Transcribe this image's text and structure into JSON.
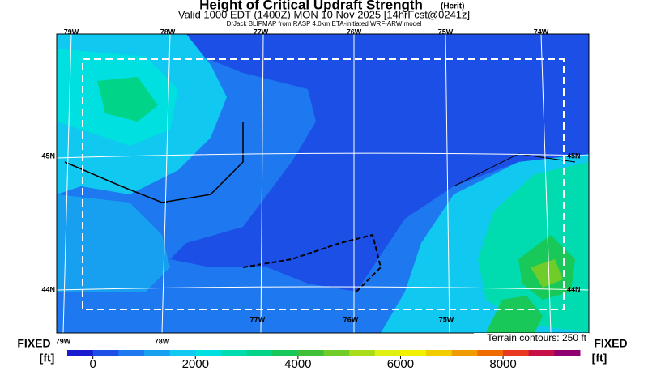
{
  "title": "Height of Critical Updraft Strength",
  "title_tag": "(Hcrit)",
  "subtitle": "Valid 1000 EDT (1400Z) MON 10 Nov 2025 [14hrFcst@0241z]",
  "credit": "DrJack BLIPMAP from RASP 4.0km ETA-initiated WRF-ARW model",
  "map": {
    "top_labels": [
      "79W",
      "78W",
      "77W",
      "76W",
      "75W",
      "74W"
    ],
    "bottom_labels": [
      "79W",
      "78W",
      "77W",
      "76W",
      "75W"
    ],
    "left_labels": [
      "45N",
      "44N"
    ],
    "right_labels": [
      "45N",
      "44N"
    ],
    "terrain_note": "Terrain contours: 250 ft"
  },
  "side": {
    "left_mode": "FIXED",
    "left_unit": "[ft]",
    "right_mode": "FIXED",
    "right_unit": "[ft]"
  },
  "colorbar": {
    "range": [
      -500,
      9500
    ],
    "ticks": [
      0,
      2000,
      4000,
      6000,
      8000
    ],
    "colors": [
      "#1a1ad0",
      "#1e50e8",
      "#1e78f0",
      "#18a0f0",
      "#10c8f0",
      "#00e0e0",
      "#00dcb0",
      "#00d488",
      "#18c858",
      "#40c038",
      "#70cc28",
      "#a8dc18",
      "#e0f010",
      "#f0f000",
      "#f0cc00",
      "#f09c00",
      "#f06c00",
      "#e83820",
      "#c81048",
      "#900070"
    ]
  }
}
